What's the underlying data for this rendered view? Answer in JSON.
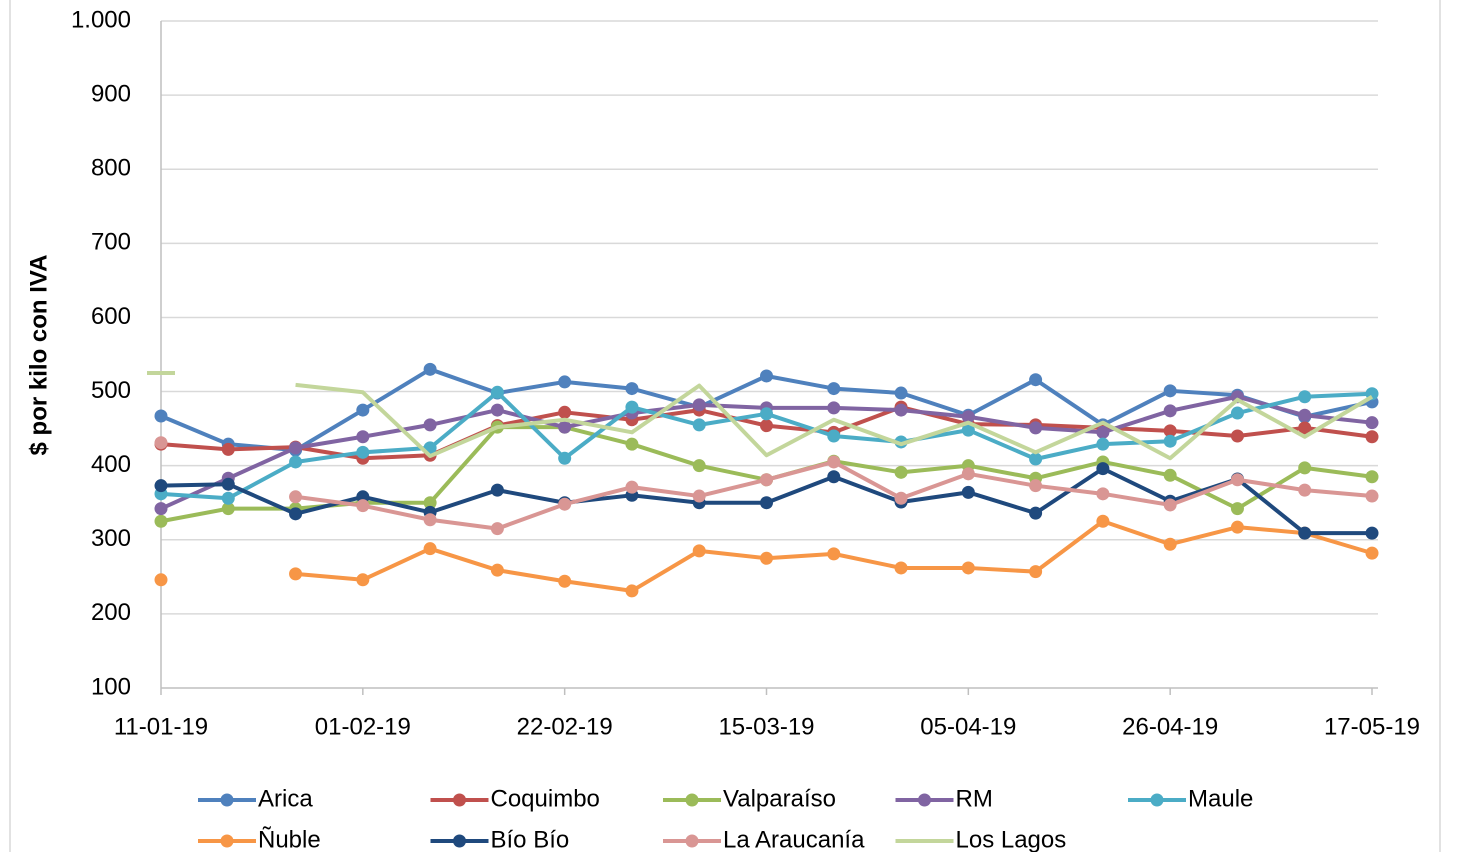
{
  "chart_data": {
    "type": "line",
    "y_label": "$ por kilo con IVA",
    "categories": [
      "11-01-19",
      null,
      null,
      "01-02-19",
      null,
      null,
      "22-02-19",
      null,
      null,
      "15-03-19",
      null,
      null,
      "05-04-19",
      null,
      null,
      "26-04-19",
      null,
      null,
      "17-05-19"
    ],
    "ylim": [
      100,
      1000
    ],
    "yticks": [
      100,
      200,
      300,
      400,
      500,
      600,
      700,
      800,
      900,
      {
        "value": 1000,
        "label": "1.000"
      }
    ],
    "grid": true,
    "legend": "bottom",
    "series": [
      {
        "name": "Arica",
        "color": "#4f81bd",
        "markers": true,
        "values": [
          467,
          429,
          421,
          475,
          530,
          498,
          513,
          504,
          479,
          521,
          504,
          498,
          468,
          516,
          455,
          501,
          495,
          466,
          486
        ]
      },
      {
        "name": "Coquimbo",
        "color": "#c0504d",
        "markers": true,
        "values": [
          429,
          422,
          425,
          410,
          414,
          454,
          472,
          462,
          475,
          454,
          445,
          479,
          456,
          455,
          451,
          447,
          440,
          451,
          439
        ]
      },
      {
        "name": "Valparaíso",
        "color": "#9bbb59",
        "markers": true,
        "values": [
          325,
          342,
          342,
          350,
          350,
          452,
          452,
          429,
          400,
          381,
          406,
          391,
          400,
          383,
          405,
          387,
          342,
          397,
          385
        ]
      },
      {
        "name": "RM",
        "color": "#8064a2",
        "markers": true,
        "values": [
          342,
          383,
          424,
          439,
          455,
          475,
          452,
          471,
          482,
          478,
          478,
          475,
          466,
          451,
          445,
          474,
          493,
          468,
          458
        ]
      },
      {
        "name": "Maule",
        "color": "#4bacc6",
        "markers": true,
        "values": [
          362,
          356,
          405,
          418,
          424,
          499,
          410,
          479,
          455,
          470,
          440,
          432,
          448,
          409,
          429,
          433,
          471,
          493,
          497
        ]
      },
      {
        "name": "Ñuble",
        "color": "#f79646",
        "markers": true,
        "values": [
          246,
          null,
          254,
          246,
          288,
          259,
          244,
          231,
          285,
          275,
          281,
          262,
          262,
          257,
          325,
          294,
          317,
          309,
          282
        ]
      },
      {
        "name": "Bío Bío",
        "color": "#1f497d",
        "markers": true,
        "values": [
          373,
          375,
          335,
          358,
          337,
          367,
          350,
          360,
          350,
          350,
          385,
          351,
          364,
          336,
          396,
          352,
          382,
          309,
          309
        ]
      },
      {
        "name": "La Araucanía",
        "color": "#d99694",
        "markers": true,
        "values": [
          431,
          null,
          358,
          346,
          327,
          315,
          348,
          371,
          359,
          381,
          405,
          356,
          389,
          373,
          362,
          347,
          381,
          367,
          359
        ]
      },
      {
        "name": "Los Lagos",
        "color": "#c3d69b",
        "markers": false,
        "values": [
          525,
          null,
          509,
          499,
          413,
          452,
          462,
          445,
          508,
          414,
          462,
          429,
          458,
          418,
          458,
          410,
          489,
          439,
          493
        ]
      }
    ]
  }
}
